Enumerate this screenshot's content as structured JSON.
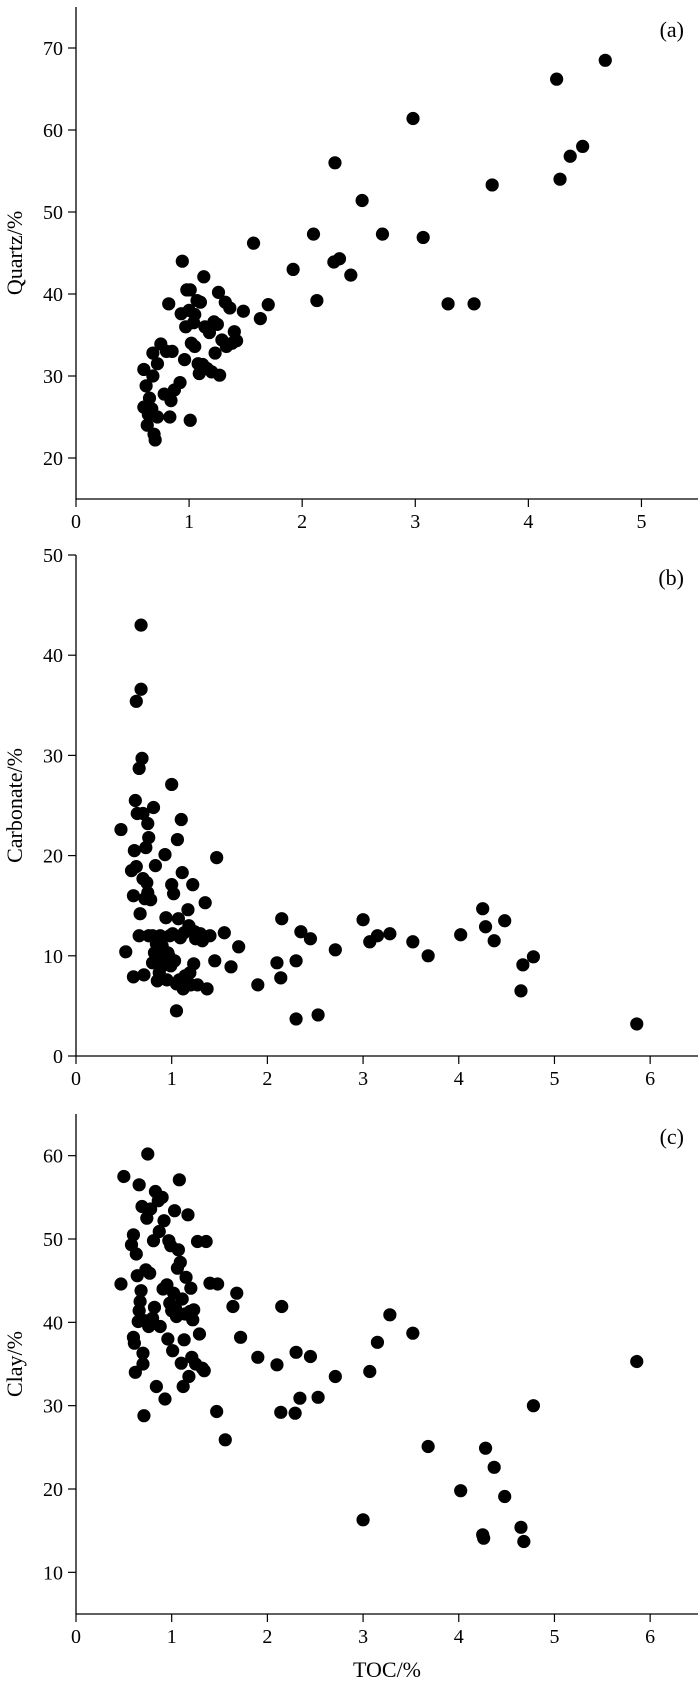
{
  "chart_data": [
    {
      "type": "scatter",
      "panel_label": "(a)",
      "xlabel": "",
      "ylabel": "Quartz/%",
      "xlim": [
        0,
        5.5
      ],
      "ylim": [
        15,
        75
      ],
      "xticks": [
        0,
        1,
        2,
        3,
        4,
        5
      ],
      "yticks": [
        20,
        30,
        40,
        50,
        60,
        70
      ],
      "x_tick_labels": [
        "0",
        "1",
        "2",
        "3",
        "4",
        "5"
      ],
      "y_tick_labels": [
        "20",
        "30",
        "40",
        "50",
        "60",
        "70"
      ],
      "grid": false,
      "legend": "none",
      "marker_color": "#000000",
      "points": [
        [
          0.6,
          30.8
        ],
        [
          0.6,
          26.2
        ],
        [
          0.62,
          28.8
        ],
        [
          0.63,
          24.0
        ],
        [
          0.64,
          25.3
        ],
        [
          0.65,
          27.3
        ],
        [
          0.67,
          26.0
        ],
        [
          0.68,
          32.8
        ],
        [
          0.68,
          30.0
        ],
        [
          0.69,
          22.9
        ],
        [
          0.7,
          22.2
        ],
        [
          0.72,
          25.0
        ],
        [
          0.72,
          31.5
        ],
        [
          0.75,
          33.9
        ],
        [
          0.78,
          27.8
        ],
        [
          0.8,
          33.0
        ],
        [
          0.82,
          38.8
        ],
        [
          0.83,
          25.0
        ],
        [
          0.84,
          27.0
        ],
        [
          0.85,
          33.0
        ],
        [
          0.87,
          28.3
        ],
        [
          0.92,
          29.2
        ],
        [
          0.93,
          37.6
        ],
        [
          0.94,
          44.0
        ],
        [
          0.96,
          32.0
        ],
        [
          0.97,
          36.0
        ],
        [
          0.98,
          40.5
        ],
        [
          1.0,
          38.0
        ],
        [
          1.01,
          24.6
        ],
        [
          1.01,
          40.5
        ],
        [
          1.02,
          34.0
        ],
        [
          1.04,
          36.5
        ],
        [
          1.05,
          33.6
        ],
        [
          1.05,
          37.5
        ],
        [
          1.07,
          39.2
        ],
        [
          1.08,
          31.5
        ],
        [
          1.09,
          30.3
        ],
        [
          1.1,
          39.0
        ],
        [
          1.12,
          31.4
        ],
        [
          1.13,
          42.1
        ],
        [
          1.14,
          36.0
        ],
        [
          1.16,
          30.9
        ],
        [
          1.18,
          35.3
        ],
        [
          1.2,
          30.5
        ],
        [
          1.22,
          36.6
        ],
        [
          1.23,
          32.8
        ],
        [
          1.25,
          36.3
        ],
        [
          1.26,
          40.2
        ],
        [
          1.27,
          30.1
        ],
        [
          1.29,
          34.4
        ],
        [
          1.32,
          39.0
        ],
        [
          1.33,
          33.6
        ],
        [
          1.36,
          38.3
        ],
        [
          1.38,
          34.0
        ],
        [
          1.4,
          35.4
        ],
        [
          1.42,
          34.3
        ],
        [
          1.48,
          37.9
        ],
        [
          1.57,
          46.2
        ],
        [
          1.63,
          37.0
        ],
        [
          1.7,
          38.7
        ],
        [
          1.92,
          43.0
        ],
        [
          2.1,
          47.3
        ],
        [
          2.13,
          39.2
        ],
        [
          2.28,
          43.9
        ],
        [
          2.29,
          56.0
        ],
        [
          2.33,
          44.3
        ],
        [
          2.43,
          42.3
        ],
        [
          2.53,
          51.4
        ],
        [
          2.71,
          47.3
        ],
        [
          2.98,
          61.4
        ],
        [
          3.07,
          46.9
        ],
        [
          3.29,
          38.8
        ],
        [
          3.52,
          38.8
        ],
        [
          3.68,
          53.3
        ],
        [
          4.25,
          66.2
        ],
        [
          4.28,
          54.0
        ],
        [
          4.37,
          56.8
        ],
        [
          4.48,
          58.0
        ],
        [
          4.68,
          68.5
        ]
      ]
    },
    {
      "type": "scatter",
      "panel_label": "(b)",
      "xlabel": "",
      "ylabel": "Carbonate/%",
      "xlim": [
        0,
        6.5
      ],
      "ylim": [
        0,
        50
      ],
      "xticks": [
        0,
        1,
        2,
        3,
        4,
        5,
        6
      ],
      "yticks": [
        0,
        10,
        20,
        30,
        40,
        50
      ],
      "x_tick_labels": [
        "0",
        "1",
        "2",
        "3",
        "4",
        "5",
        "6"
      ],
      "y_tick_labels": [
        "0",
        "10",
        "20",
        "30",
        "40",
        "50"
      ],
      "grid": false,
      "legend": "none",
      "marker_color": "#000000",
      "points": [
        [
          0.47,
          22.6
        ],
        [
          0.52,
          10.4
        ],
        [
          0.58,
          18.5
        ],
        [
          0.6,
          7.9
        ],
        [
          0.6,
          16.0
        ],
        [
          0.61,
          20.5
        ],
        [
          0.62,
          25.5
        ],
        [
          0.63,
          35.4
        ],
        [
          0.63,
          18.9
        ],
        [
          0.64,
          24.2
        ],
        [
          0.66,
          12.0
        ],
        [
          0.66,
          28.7
        ],
        [
          0.67,
          14.2
        ],
        [
          0.68,
          43.0
        ],
        [
          0.68,
          36.6
        ],
        [
          0.69,
          29.7
        ],
        [
          0.7,
          24.2
        ],
        [
          0.7,
          17.7
        ],
        [
          0.71,
          8.1
        ],
        [
          0.72,
          15.7
        ],
        [
          0.73,
          20.8
        ],
        [
          0.74,
          17.3
        ],
        [
          0.75,
          23.2
        ],
        [
          0.75,
          16.3
        ],
        [
          0.76,
          12.0
        ],
        [
          0.76,
          21.8
        ],
        [
          0.78,
          15.6
        ],
        [
          0.8,
          12.0
        ],
        [
          0.8,
          9.3
        ],
        [
          0.81,
          24.8
        ],
        [
          0.82,
          10.3
        ],
        [
          0.83,
          19.0
        ],
        [
          0.84,
          11.2
        ],
        [
          0.85,
          7.5
        ],
        [
          0.86,
          9.5
        ],
        [
          0.87,
          8.3
        ],
        [
          0.87,
          10.6
        ],
        [
          0.88,
          12.0
        ],
        [
          0.89,
          8.9
        ],
        [
          0.9,
          11.0
        ],
        [
          0.92,
          9.8
        ],
        [
          0.93,
          20.1
        ],
        [
          0.94,
          13.8
        ],
        [
          0.95,
          7.6
        ],
        [
          0.96,
          10.3
        ],
        [
          0.97,
          10.0
        ],
        [
          0.98,
          12.0
        ],
        [
          0.99,
          9.0
        ],
        [
          1.0,
          27.1
        ],
        [
          1.0,
          17.1
        ],
        [
          1.01,
          12.2
        ],
        [
          1.02,
          16.2
        ],
        [
          1.03,
          9.5
        ],
        [
          1.05,
          7.2
        ],
        [
          1.05,
          4.5
        ],
        [
          1.06,
          21.6
        ],
        [
          1.07,
          13.7
        ],
        [
          1.08,
          7.6
        ],
        [
          1.09,
          11.8
        ],
        [
          1.1,
          23.6
        ],
        [
          1.11,
          18.3
        ],
        [
          1.12,
          6.7
        ],
        [
          1.13,
          12.3
        ],
        [
          1.14,
          8.0
        ],
        [
          1.15,
          7.4
        ],
        [
          1.17,
          14.6
        ],
        [
          1.18,
          13.0
        ],
        [
          1.19,
          8.3
        ],
        [
          1.2,
          7.1
        ],
        [
          1.22,
          17.1
        ],
        [
          1.23,
          9.2
        ],
        [
          1.24,
          12.4
        ],
        [
          1.25,
          11.7
        ],
        [
          1.27,
          7.1
        ],
        [
          1.3,
          12.2
        ],
        [
          1.32,
          11.5
        ],
        [
          1.35,
          15.3
        ],
        [
          1.37,
          6.7
        ],
        [
          1.4,
          12.0
        ],
        [
          1.45,
          9.5
        ],
        [
          1.47,
          19.8
        ],
        [
          1.55,
          12.3
        ],
        [
          1.62,
          8.9
        ],
        [
          1.7,
          10.9
        ],
        [
          1.9,
          7.1
        ],
        [
          2.1,
          9.3
        ],
        [
          2.14,
          7.8
        ],
        [
          2.15,
          13.7
        ],
        [
          2.3,
          9.5
        ],
        [
          2.3,
          3.7
        ],
        [
          2.35,
          12.4
        ],
        [
          2.45,
          11.7
        ],
        [
          2.53,
          4.1
        ],
        [
          2.71,
          10.6
        ],
        [
          3.0,
          13.6
        ],
        [
          3.07,
          11.4
        ],
        [
          3.15,
          12.0
        ],
        [
          3.28,
          12.2
        ],
        [
          3.52,
          11.4
        ],
        [
          3.68,
          10.0
        ],
        [
          4.02,
          12.1
        ],
        [
          4.25,
          14.7
        ],
        [
          4.28,
          12.9
        ],
        [
          4.37,
          11.5
        ],
        [
          4.48,
          13.5
        ],
        [
          4.65,
          6.5
        ],
        [
          4.67,
          9.1
        ],
        [
          4.78,
          9.9
        ],
        [
          5.86,
          3.2
        ]
      ]
    },
    {
      "type": "scatter",
      "panel_label": "(c)",
      "xlabel": "TOC/%",
      "ylabel": "Clay/%",
      "xlim": [
        0,
        6.5
      ],
      "ylim": [
        5,
        65
      ],
      "xticks": [
        0,
        1,
        2,
        3,
        4,
        5,
        6
      ],
      "yticks": [
        10,
        20,
        30,
        40,
        50,
        60
      ],
      "x_tick_labels": [
        "0",
        "1",
        "2",
        "3",
        "4",
        "5",
        "6"
      ],
      "y_tick_labels": [
        "10",
        "20",
        "30",
        "40",
        "50",
        "60"
      ],
      "grid": false,
      "legend": "none",
      "marker_color": "#000000",
      "points": [
        [
          0.47,
          44.6
        ],
        [
          0.5,
          57.5
        ],
        [
          0.58,
          49.3
        ],
        [
          0.6,
          38.2
        ],
        [
          0.6,
          50.5
        ],
        [
          0.61,
          37.5
        ],
        [
          0.62,
          34.0
        ],
        [
          0.63,
          48.2
        ],
        [
          0.64,
          45.6
        ],
        [
          0.65,
          40.1
        ],
        [
          0.66,
          41.4
        ],
        [
          0.66,
          56.5
        ],
        [
          0.67,
          42.5
        ],
        [
          0.68,
          43.8
        ],
        [
          0.69,
          53.9
        ],
        [
          0.7,
          36.3
        ],
        [
          0.7,
          35.0
        ],
        [
          0.71,
          28.8
        ],
        [
          0.72,
          40.2
        ],
        [
          0.73,
          46.3
        ],
        [
          0.74,
          52.5
        ],
        [
          0.75,
          60.2
        ],
        [
          0.76,
          39.5
        ],
        [
          0.77,
          45.9
        ],
        [
          0.78,
          53.6
        ],
        [
          0.8,
          40.5
        ],
        [
          0.81,
          49.8
        ],
        [
          0.82,
          41.8
        ],
        [
          0.83,
          55.7
        ],
        [
          0.84,
          32.3
        ],
        [
          0.86,
          54.6
        ],
        [
          0.87,
          50.9
        ],
        [
          0.88,
          39.5
        ],
        [
          0.9,
          55.0
        ],
        [
          0.91,
          44.0
        ],
        [
          0.92,
          52.2
        ],
        [
          0.93,
          30.8
        ],
        [
          0.95,
          44.5
        ],
        [
          0.96,
          38.0
        ],
        [
          0.97,
          49.8
        ],
        [
          0.98,
          42.3
        ],
        [
          0.99,
          49.2
        ],
        [
          1.0,
          41.4
        ],
        [
          1.01,
          36.6
        ],
        [
          1.02,
          43.5
        ],
        [
          1.03,
          53.4
        ],
        [
          1.04,
          41.7
        ],
        [
          1.05,
          40.7
        ],
        [
          1.06,
          46.5
        ],
        [
          1.07,
          48.7
        ],
        [
          1.08,
          57.1
        ],
        [
          1.09,
          47.2
        ],
        [
          1.1,
          35.1
        ],
        [
          1.11,
          42.8
        ],
        [
          1.12,
          32.3
        ],
        [
          1.13,
          37.9
        ],
        [
          1.14,
          41.0
        ],
        [
          1.15,
          45.4
        ],
        [
          1.17,
          52.9
        ],
        [
          1.18,
          33.5
        ],
        [
          1.19,
          41.3
        ],
        [
          1.2,
          44.1
        ],
        [
          1.21,
          35.8
        ],
        [
          1.22,
          40.3
        ],
        [
          1.23,
          41.5
        ],
        [
          1.25,
          35.0
        ],
        [
          1.27,
          49.7
        ],
        [
          1.29,
          38.6
        ],
        [
          1.32,
          34.5
        ],
        [
          1.34,
          34.2
        ],
        [
          1.36,
          49.7
        ],
        [
          1.4,
          44.7
        ],
        [
          1.47,
          29.3
        ],
        [
          1.48,
          44.6
        ],
        [
          1.56,
          25.9
        ],
        [
          1.64,
          41.9
        ],
        [
          1.68,
          43.5
        ],
        [
          1.72,
          38.2
        ],
        [
          1.9,
          35.8
        ],
        [
          2.1,
          34.9
        ],
        [
          2.14,
          29.2
        ],
        [
          2.15,
          41.9
        ],
        [
          2.29,
          29.1
        ],
        [
          2.3,
          36.4
        ],
        [
          2.34,
          30.9
        ],
        [
          2.45,
          35.9
        ],
        [
          2.53,
          31.0
        ],
        [
          2.71,
          33.5
        ],
        [
          3.0,
          16.3
        ],
        [
          3.07,
          34.1
        ],
        [
          3.15,
          37.6
        ],
        [
          3.28,
          40.9
        ],
        [
          3.52,
          38.7
        ],
        [
          3.68,
          25.1
        ],
        [
          4.02,
          19.8
        ],
        [
          4.25,
          14.5
        ],
        [
          4.26,
          14.1
        ],
        [
          4.28,
          24.9
        ],
        [
          4.37,
          22.6
        ],
        [
          4.48,
          19.1
        ],
        [
          4.65,
          15.4
        ],
        [
          4.68,
          13.7
        ],
        [
          4.78,
          30.0
        ],
        [
          5.86,
          35.3
        ]
      ]
    }
  ]
}
